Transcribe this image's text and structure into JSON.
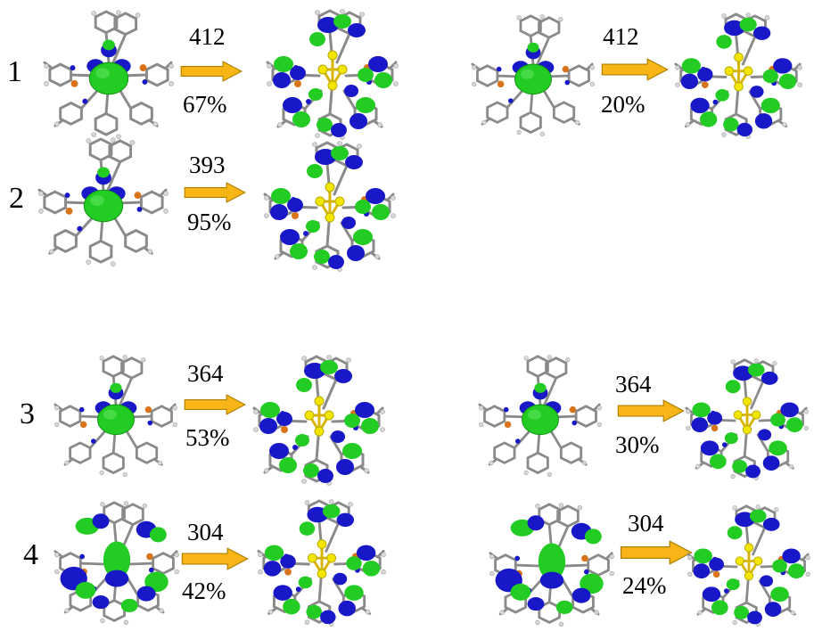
{
  "rows": [
    {
      "label": "1",
      "transitions": [
        {
          "wavelength": "412",
          "percent": "67%"
        },
        {
          "wavelength": "412",
          "percent": "20%"
        }
      ]
    },
    {
      "label": "2",
      "transitions": [
        {
          "wavelength": "393",
          "percent": "95%"
        }
      ]
    },
    {
      "label": "3",
      "transitions": [
        {
          "wavelength": "364",
          "percent": "53%"
        },
        {
          "wavelength": "364",
          "percent": "30%"
        }
      ]
    },
    {
      "label": "4",
      "transitions": [
        {
          "wavelength": "304",
          "percent": "42%"
        },
        {
          "wavelength": "304",
          "percent": "24%"
        }
      ]
    }
  ],
  "colors": {
    "orbital_green": "#22cc22",
    "orbital_blue": "#1818c8",
    "arrow_fill": "#f7b517",
    "arrow_stroke": "#b07f00",
    "atom_yellow": "#f2e600",
    "atom_orange": "#d9731a",
    "bond_gray": "#8a8a8a"
  }
}
